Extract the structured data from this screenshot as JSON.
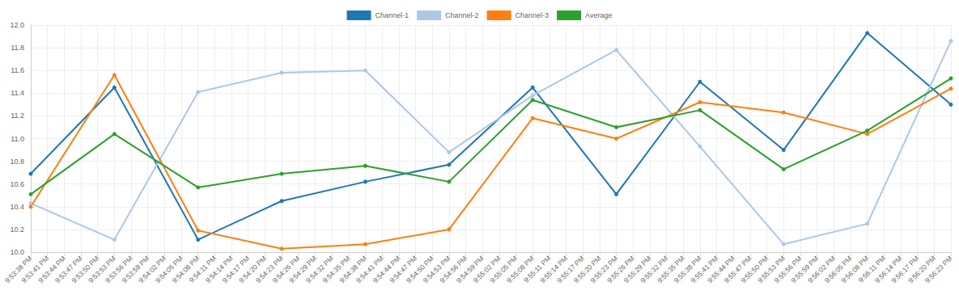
{
  "chart_data": {
    "type": "line",
    "categories": [
      "9:53:38 PM",
      "9:53:41 PM",
      "9:53:44 PM",
      "9:53:47 PM",
      "9:53:50 PM",
      "9:53:53 PM",
      "9:53:56 PM",
      "9:53:59 PM",
      "9:54:02 PM",
      "9:54:05 PM",
      "9:54:08 PM",
      "9:54:11 PM",
      "9:54:14 PM",
      "9:54:17 PM",
      "9:54:20 PM",
      "9:54:23 PM",
      "9:54:26 PM",
      "9:54:29 PM",
      "9:54:32 PM",
      "9:54:35 PM",
      "9:54:38 PM",
      "9:54:41 PM",
      "9:54:44 PM",
      "9:54:47 PM",
      "9:54:50 PM",
      "9:54:53 PM",
      "9:54:56 PM",
      "9:54:59 PM",
      "9:55:02 PM",
      "9:55:05 PM",
      "9:55:08 PM",
      "9:55:11 PM",
      "9:55:14 PM",
      "9:55:17 PM",
      "9:55:20 PM",
      "9:55:23 PM",
      "9:55:26 PM",
      "9:55:29 PM",
      "9:55:32 PM",
      "9:55:35 PM",
      "9:55:38 PM",
      "9:55:41 PM",
      "9:55:44 PM",
      "9:55:47 PM",
      "9:55:50 PM",
      "9:55:53 PM",
      "9:55:56 PM",
      "9:55:59 PM",
      "9:56:02 PM",
      "9:56:05 PM",
      "9:56:08 PM",
      "9:56:11 PM",
      "9:56:14 PM",
      "9:56:17 PM",
      "9:56:20 PM",
      "9:56:23 PM"
    ],
    "series": [
      {
        "name": "Channel-1",
        "color": "#1f77b4",
        "values": [
          10.69,
          null,
          null,
          null,
          null,
          11.45,
          null,
          null,
          null,
          null,
          10.11,
          null,
          null,
          null,
          null,
          10.45,
          null,
          null,
          null,
          null,
          10.62,
          null,
          null,
          null,
          null,
          10.77,
          null,
          null,
          null,
          null,
          11.45,
          null,
          null,
          null,
          null,
          10.51,
          null,
          null,
          null,
          null,
          11.5,
          null,
          null,
          null,
          null,
          10.9,
          null,
          null,
          null,
          null,
          11.93,
          null,
          null,
          null,
          null,
          11.3
        ]
      },
      {
        "name": "Channel-2",
        "color": "#aec7e8",
        "values": [
          10.43,
          null,
          null,
          null,
          null,
          10.11,
          null,
          null,
          null,
          null,
          11.41,
          null,
          null,
          null,
          null,
          11.58,
          null,
          null,
          null,
          null,
          11.6,
          null,
          null,
          null,
          null,
          10.88,
          null,
          null,
          null,
          null,
          11.38,
          null,
          null,
          null,
          null,
          11.78,
          null,
          null,
          null,
          null,
          10.93,
          null,
          null,
          null,
          null,
          10.07,
          null,
          null,
          null,
          null,
          10.25,
          null,
          null,
          null,
          null,
          11.86
        ]
      },
      {
        "name": "Channel-3",
        "color": "#ff7f0e",
        "values": [
          10.4,
          null,
          null,
          null,
          null,
          11.56,
          null,
          null,
          null,
          null,
          10.19,
          null,
          null,
          null,
          null,
          10.03,
          null,
          null,
          null,
          null,
          10.07,
          null,
          null,
          null,
          null,
          10.2,
          null,
          null,
          null,
          null,
          11.18,
          null,
          null,
          null,
          null,
          11.0,
          null,
          null,
          null,
          null,
          11.32,
          null,
          null,
          null,
          null,
          11.23,
          null,
          null,
          null,
          null,
          11.04,
          null,
          null,
          null,
          null,
          11.44
        ]
      },
      {
        "name": "Average",
        "color": "#2ca02c",
        "values": [
          10.51,
          null,
          null,
          null,
          null,
          11.04,
          null,
          null,
          null,
          null,
          10.57,
          null,
          null,
          null,
          null,
          10.69,
          null,
          null,
          null,
          null,
          10.76,
          null,
          null,
          null,
          null,
          10.62,
          null,
          null,
          null,
          null,
          11.34,
          null,
          null,
          null,
          null,
          11.1,
          null,
          null,
          null,
          null,
          11.25,
          null,
          null,
          null,
          null,
          10.73,
          null,
          null,
          null,
          null,
          11.07,
          null,
          null,
          null,
          null,
          11.53
        ]
      }
    ],
    "ylim": [
      10,
      12
    ],
    "yticks": [
      {
        "value": 10,
        "label": "10.0"
      },
      10.2,
      10.4,
      10.6,
      10.8,
      {
        "value": 11,
        "label": "11.0"
      },
      11.2,
      11.4,
      11.6,
      11.8,
      {
        "value": 12,
        "label": "12.0"
      }
    ],
    "grid": true,
    "legend": "top",
    "marker": "circle"
  }
}
